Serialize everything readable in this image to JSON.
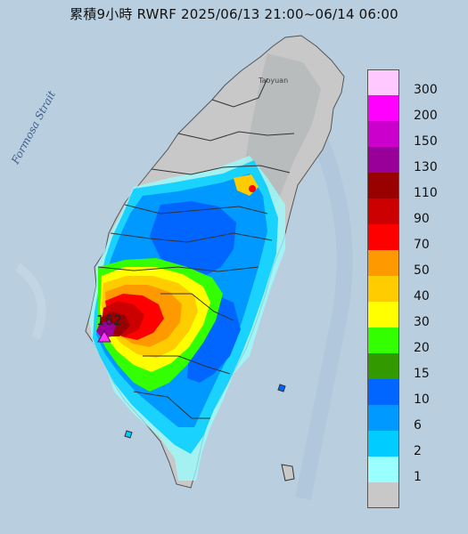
{
  "title": "累積9小時 RWRF 2025/06/13 21:00~06/14 06:00",
  "labels": {
    "strait": "Formosa Strait",
    "city": "Taoyuan",
    "peak": "162"
  },
  "legend": {
    "unit_steps": [
      {
        "label": "300",
        "color": "#ffc8ff"
      },
      {
        "label": "200",
        "color": "#ff00ff"
      },
      {
        "label": "150",
        "color": "#cc00cc"
      },
      {
        "label": "130",
        "color": "#990099"
      },
      {
        "label": "110",
        "color": "#990000"
      },
      {
        "label": "90",
        "color": "#cc0000"
      },
      {
        "label": "70",
        "color": "#ff0000"
      },
      {
        "label": "50",
        "color": "#ff9900"
      },
      {
        "label": "40",
        "color": "#ffcc00"
      },
      {
        "label": "30",
        "color": "#ffff00"
      },
      {
        "label": "20",
        "color": "#33ff00"
      },
      {
        "label": "15",
        "color": "#339900"
      },
      {
        "label": "10",
        "color": "#0066ff"
      },
      {
        "label": "6",
        "color": "#0099ff"
      },
      {
        "label": "2",
        "color": "#00ccff"
      },
      {
        "label": "1",
        "color": "#99ffff"
      },
      {
        "label": "",
        "color": "#c8c8c8"
      }
    ]
  },
  "colors": {
    "sea": "#b9cfe0",
    "land_dry": "#c8c8c8",
    "mountain": "#b8bcbd",
    "peak_marker": "#ff33ff"
  }
}
